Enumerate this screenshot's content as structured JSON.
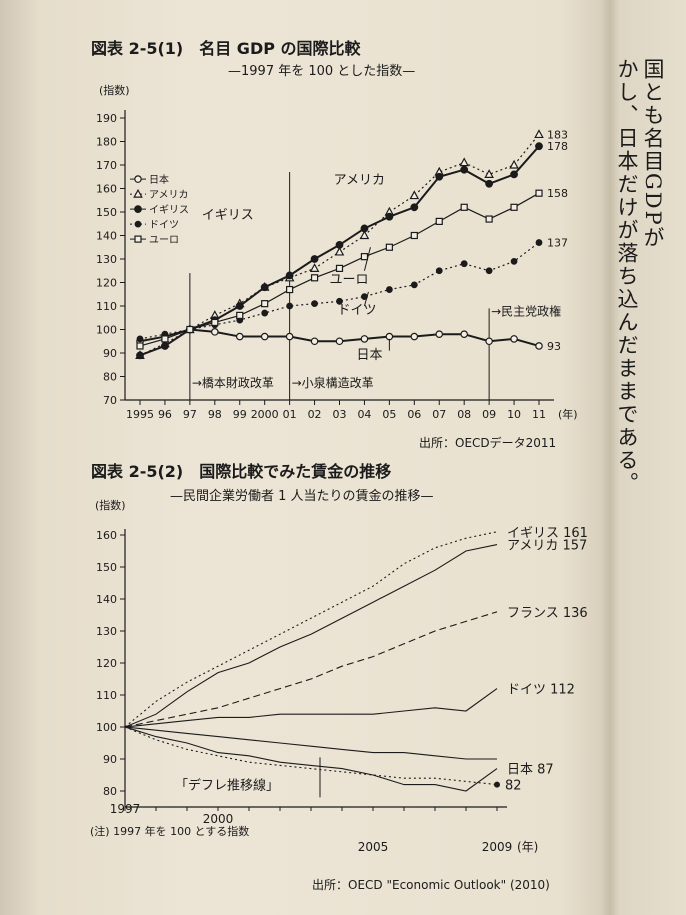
{
  "chart1": {
    "title": "図表 2-5(1)　名目 GDP の国際比較",
    "subtitle": "—1997 年を 100 とした指数—",
    "ylabel": "(指数)",
    "source": "出所：OECDデータ2011",
    "annotations": [
      "橋本財政改革",
      "小泉構造改革",
      "民主党政権"
    ],
    "series_labels": [
      "アメリカ",
      "イギリス",
      "ユーロ",
      "ドイツ",
      "日本"
    ],
    "end_labels": [
      "183",
      "178",
      "158",
      "137",
      "93"
    ],
    "legend": [
      "日本",
      "アメリカ",
      "イギリス",
      "ドイツ",
      "ユーロ"
    ],
    "year_unit": "(年)"
  },
  "chart2": {
    "title": "図表 2-5(2)　国際比較でみた賃金の推移",
    "subtitle": "—民間企業労働者 1 人当たりの賃金の推移—",
    "ylabel": "(指数)",
    "note": "(注) 1997 年を 100 とする指数",
    "source": "出所：OECD \"Economic Outlook\" (2010)",
    "deflation_label": "「デフレ推移線」",
    "end_labels": [
      "イギリス 161",
      "アメリカ 157",
      "フランス 136",
      "ドイツ 112",
      "日本 87",
      "82"
    ],
    "year_unit": "(年)"
  },
  "side_text": [
    "国とも名目GDPが",
    "かし、日本だけが落ち込んだままである。"
  ],
  "chart_data": [
    {
      "type": "line",
      "title": "図表 2-5(1)　名目 GDP の国際比較",
      "subtitle": "—1997 年を 100 とした指数—",
      "xlabel": "(年)",
      "ylabel": "(指数)",
      "x": [
        "1995",
        "96",
        "97",
        "98",
        "99",
        "2000",
        "01",
        "02",
        "03",
        "04",
        "05",
        "06",
        "07",
        "08",
        "09",
        "10",
        "11"
      ],
      "ylim": [
        70,
        190
      ],
      "yticks": [
        70,
        80,
        90,
        100,
        110,
        120,
        130,
        140,
        150,
        160,
        170,
        180,
        190
      ],
      "series": [
        {
          "name": "日本",
          "marker": "open-circle",
          "style": "solid",
          "values": [
            95,
            97,
            100,
            99,
            97,
            97,
            97,
            95,
            95,
            96,
            97,
            97,
            98,
            98,
            95,
            96,
            93
          ]
        },
        {
          "name": "アメリカ",
          "marker": "open-triangle",
          "style": "dotted",
          "values": [
            89,
            94,
            100,
            106,
            111,
            118,
            122,
            126,
            133,
            140,
            150,
            157,
            167,
            171,
            166,
            170,
            183
          ]
        },
        {
          "name": "イギリス",
          "marker": "filled-circle",
          "style": "solid",
          "values": [
            89,
            93,
            100,
            104,
            110,
            118,
            123,
            130,
            136,
            143,
            148,
            152,
            165,
            168,
            162,
            166,
            178
          ]
        },
        {
          "name": "ドイツ",
          "marker": "filled-diamond",
          "style": "dotted",
          "values": [
            96,
            98,
            100,
            102,
            104,
            107,
            110,
            111,
            112,
            114,
            117,
            119,
            125,
            128,
            125,
            129,
            137
          ]
        },
        {
          "name": "ユーロ",
          "marker": "open-square",
          "style": "solid",
          "values": [
            93,
            96,
            100,
            103,
            106,
            111,
            117,
            122,
            126,
            131,
            135,
            140,
            146,
            152,
            147,
            152,
            158
          ]
        }
      ],
      "annotations": [
        {
          "text": "橋本財政改革",
          "x": "97"
        },
        {
          "text": "小泉構造改革",
          "x": "01"
        },
        {
          "text": "民主党政権",
          "x": "09"
        }
      ],
      "legend_position": "left"
    },
    {
      "type": "line",
      "title": "図表 2-5(2)　国際比較でみた賃金の推移",
      "subtitle": "—民間企業労働者 1 人当たりの賃金の推移—",
      "xlabel": "(年)",
      "ylabel": "(指数)",
      "x": [
        1997,
        1998,
        1999,
        2000,
        2001,
        2002,
        2003,
        2004,
        2005,
        2006,
        2007,
        2008,
        2009
      ],
      "ylim": [
        75,
        160
      ],
      "yticks": [
        80,
        90,
        100,
        110,
        120,
        130,
        140,
        150,
        160
      ],
      "series": [
        {
          "name": "イギリス",
          "style": "dotted",
          "values": [
            100,
            108,
            114,
            119,
            124,
            129,
            134,
            139,
            144,
            151,
            156,
            159,
            161
          ]
        },
        {
          "name": "アメリカ",
          "style": "solid",
          "values": [
            100,
            104,
            111,
            117,
            120,
            125,
            129,
            134,
            139,
            144,
            149,
            155,
            157
          ]
        },
        {
          "name": "フランス",
          "style": "dashed",
          "values": [
            100,
            102,
            104,
            106,
            109,
            112,
            115,
            119,
            122,
            126,
            130,
            133,
            136
          ]
        },
        {
          "name": "ドイツ",
          "style": "solid",
          "values": [
            100,
            101,
            102,
            103,
            103,
            104,
            104,
            104,
            104,
            105,
            106,
            105,
            112
          ]
        },
        {
          "name": "日本",
          "style": "solid",
          "values": [
            100,
            97,
            95,
            92,
            91,
            89,
            88,
            87,
            85,
            82,
            82,
            80,
            87
          ]
        },
        {
          "name": "「デフレ推移線」",
          "style": "dotted",
          "values": [
            100,
            96,
            93,
            91,
            89,
            88,
            87,
            86,
            85,
            84,
            84,
            83,
            82
          ]
        },
        {
          "name": "",
          "style": "solid",
          "values": [
            100,
            99,
            98,
            97,
            96,
            95,
            94,
            93,
            92,
            92,
            91,
            90,
            90
          ]
        }
      ]
    }
  ]
}
